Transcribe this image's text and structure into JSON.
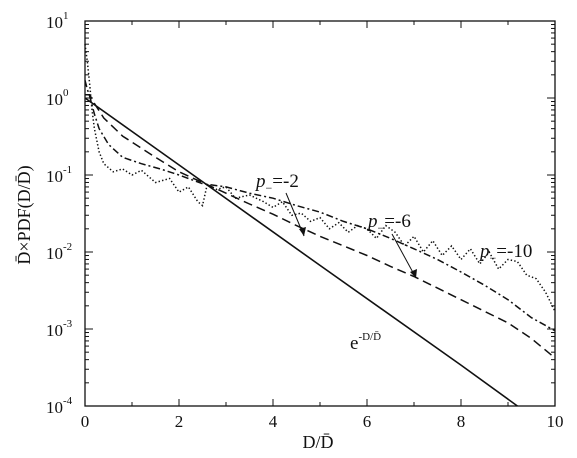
{
  "chart_data": {
    "type": "line",
    "title": "",
    "xlabel": "D/D̄",
    "ylabel": "D̄×PDF(D/D̄)",
    "xlim": [
      0,
      10
    ],
    "ylim": [
      0.0001,
      10
    ],
    "yscale": "log",
    "x_ticks": [
      0,
      2,
      4,
      6,
      8,
      10
    ],
    "y_ticks": [
      {
        "base": "10",
        "exp": "1"
      },
      {
        "base": "10",
        "exp": "0"
      },
      {
        "base": "10",
        "exp": "-1"
      },
      {
        "base": "10",
        "exp": "-2"
      },
      {
        "base": "10",
        "exp": "-3"
      },
      {
        "base": "10",
        "exp": "-4"
      }
    ],
    "series": [
      {
        "style": "solid",
        "x": [
          0,
          2.7,
          5,
          8,
          9.2
        ],
        "y": [
          1.0,
          0.067,
          0.0067,
          0.00034,
          0.0001
        ]
      },
      {
        "style": "dashed",
        "x": [
          0,
          0.1,
          0.2,
          0.4,
          0.8,
          1.5,
          2.0,
          2.5,
          3.0,
          3.5,
          4.0,
          4.5,
          5.0,
          5.5,
          6.0,
          6.5,
          7.0,
          7.5,
          8.0,
          8.5,
          9.0,
          9.5,
          10.0
        ],
        "y": [
          1.1,
          1.1,
          0.85,
          0.55,
          0.32,
          0.17,
          0.11,
          0.08,
          0.058,
          0.042,
          0.031,
          0.022,
          0.016,
          0.012,
          0.009,
          0.0065,
          0.0048,
          0.0034,
          0.0024,
          0.0017,
          0.0012,
          0.00075,
          0.00042
        ]
      },
      {
        "style": "dash-dot",
        "x": [
          0,
          0.05,
          0.1,
          0.2,
          0.3,
          0.5,
          0.8,
          1.2,
          1.6,
          2.0,
          2.5,
          3.0,
          3.5,
          4.0,
          4.5,
          5.0,
          5.5,
          6.0,
          6.5,
          7.0,
          7.5,
          8.0,
          8.5,
          9.0,
          9.5,
          10.0
        ],
        "y": [
          1.7,
          1.3,
          1.05,
          0.62,
          0.4,
          0.25,
          0.17,
          0.14,
          0.12,
          0.1,
          0.077,
          0.07,
          0.058,
          0.05,
          0.04,
          0.033,
          0.025,
          0.02,
          0.015,
          0.011,
          0.008,
          0.0055,
          0.0037,
          0.0024,
          0.0014,
          0.00095
        ]
      },
      {
        "style": "dotted",
        "x": [
          0,
          0.05,
          0.1,
          0.15,
          0.2,
          0.3,
          0.4,
          0.6,
          0.8,
          1.0,
          1.2,
          1.5,
          1.8,
          2.0,
          2.2,
          2.4,
          2.5,
          2.6,
          2.8,
          3.0,
          3.2,
          3.5,
          3.8,
          4.0,
          4.2,
          4.4,
          4.6,
          4.8,
          5.0,
          5.2,
          5.4,
          5.6,
          5.8,
          6.0,
          6.2,
          6.4,
          6.6,
          6.8,
          7.0,
          7.2,
          7.4,
          7.6,
          7.8,
          8.0,
          8.2,
          8.4,
          8.6,
          8.8,
          9.0,
          9.2,
          9.4,
          9.6,
          9.8,
          10.0
        ],
        "y": [
          5.0,
          3.0,
          1.5,
          0.7,
          0.4,
          0.2,
          0.14,
          0.11,
          0.12,
          0.1,
          0.115,
          0.08,
          0.09,
          0.06,
          0.07,
          0.045,
          0.04,
          0.075,
          0.065,
          0.07,
          0.05,
          0.055,
          0.045,
          0.038,
          0.045,
          0.03,
          0.032,
          0.025,
          0.028,
          0.02,
          0.024,
          0.018,
          0.022,
          0.02,
          0.015,
          0.022,
          0.018,
          0.012,
          0.016,
          0.01,
          0.014,
          0.009,
          0.012,
          0.008,
          0.011,
          0.007,
          0.01,
          0.006,
          0.008,
          0.0075,
          0.005,
          0.0045,
          0.003,
          0.0017
        ]
      }
    ],
    "annotations": {
      "p2": {
        "main": "p",
        "sub": "−",
        "rest": "=-2"
      },
      "p6": {
        "main": "p",
        "sub": "−",
        "rest": "=-6"
      },
      "p10": {
        "main": "p",
        "sub": "−",
        "rest": "=-10"
      },
      "exp": {
        "main": "e",
        "sup": "-D/D̄"
      }
    },
    "grid": false,
    "legend": "none"
  }
}
